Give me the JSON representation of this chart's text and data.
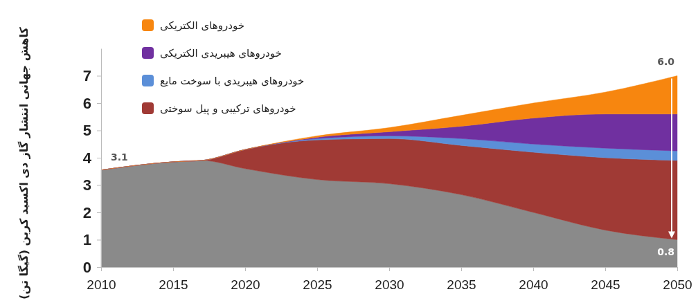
{
  "chart_data": {
    "type": "area",
    "stacked": true,
    "ylabel": "کاهش جهانی انتشار گاز دی اکسید کربن (گیگا تن)",
    "x": [
      2010,
      2015,
      2017,
      2020,
      2025,
      2030,
      2035,
      2040,
      2045,
      2050
    ],
    "series": [
      {
        "color": "#8a8a8a",
        "values": [
          3.55,
          3.85,
          3.9,
          3.6,
          3.2,
          3.05,
          2.65,
          2.0,
          1.35,
          1.0
        ]
      },
      {
        "name": "خودروهای ترکیبی و پیل سوختی",
        "color": "#a03a35",
        "values": [
          0,
          0,
          0,
          0.7,
          1.45,
          1.65,
          1.8,
          2.2,
          2.65,
          2.9
        ]
      },
      {
        "name": "خودروهای هیبریدی با سوخت مایع",
        "color": "#5b8fd8",
        "values": [
          0,
          0,
          0,
          0,
          0.05,
          0.1,
          0.25,
          0.3,
          0.35,
          0.35
        ]
      },
      {
        "name": "خودروهای هیبریدی الکتریکی",
        "color": "#7030a0",
        "values": [
          0,
          0,
          0,
          0,
          0.05,
          0.15,
          0.45,
          0.95,
          1.25,
          1.35
        ]
      },
      {
        "name": "خودروهای الکتریکی",
        "color": "#f7860f",
        "values": [
          0,
          0,
          0,
          0,
          0.05,
          0.15,
          0.4,
          0.55,
          0.8,
          1.4
        ]
      }
    ],
    "xlim": [
      2010,
      2050
    ],
    "xticks": [
      2010,
      2015,
      2020,
      2025,
      2030,
      2035,
      2040,
      2045,
      2050
    ],
    "ylim": [
      0,
      8
    ],
    "yticks": [
      0,
      1,
      2,
      3,
      4,
      5,
      6,
      7
    ],
    "legend": "top left",
    "annotations": [
      "3.1",
      "6.0",
      "0.8"
    ]
  }
}
